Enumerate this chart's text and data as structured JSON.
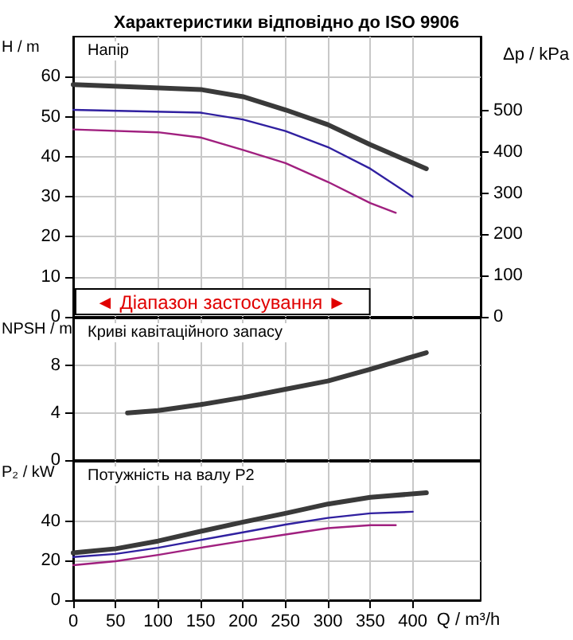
{
  "chart_data": [
    {
      "type": "line",
      "title": "Характеристики відповідно до ISO 9906",
      "subtitle": "Напір",
      "ylabel": "H / m",
      "y2label": "Δp / kPa",
      "xlim": [
        0,
        480
      ],
      "xticks": [
        0,
        50,
        100,
        150,
        200,
        250,
        300,
        350,
        400
      ],
      "ylim": [
        0,
        70
      ],
      "yticks": [
        0,
        10,
        20,
        30,
        40,
        50,
        60
      ],
      "y2lim": [
        0,
        680
      ],
      "y2ticks": [
        0,
        100,
        200,
        300,
        400,
        500
      ],
      "series": [
        {
          "color": "#3a3a3a",
          "x": [
            0,
            150,
            200,
            250,
            300,
            350,
            416
          ],
          "values": [
            58,
            56.8,
            55,
            51.7,
            48,
            43,
            37
          ]
        },
        {
          "color": "#3020a0",
          "x": [
            0,
            150,
            200,
            250,
            300,
            350,
            400
          ],
          "values": [
            51.7,
            51,
            49.3,
            46.4,
            42.4,
            37,
            30
          ]
        },
        {
          "color": "#a0207f",
          "x": [
            0,
            100,
            150,
            200,
            250,
            300,
            350,
            380
          ],
          "values": [
            46.8,
            46.1,
            44.8,
            41.7,
            38.4,
            33.7,
            28.4,
            26
          ]
        }
      ],
      "annotations": [
        "◄ Діапазон застосування ►"
      ],
      "grid": true,
      "tick_labels": "y",
      "line_style": "solid",
      "marker": "none"
    },
    {
      "type": "line",
      "subtitle": "Криві кавітаційного запасу",
      "ylabel": "NPSH / m",
      "xlim": [
        0,
        480
      ],
      "xticks": [
        0,
        50,
        100,
        150,
        200,
        250,
        300,
        350,
        400
      ],
      "ylim": [
        0,
        12
      ],
      "yticks": [
        0,
        4,
        8
      ],
      "series": [
        {
          "color": "#3a3a3a",
          "x": [
            64,
            100,
            150,
            200,
            250,
            300,
            350,
            416
          ],
          "values": [
            4,
            4.2,
            4.7,
            5.3,
            6,
            6.7,
            7.7,
            9.1
          ]
        }
      ],
      "grid": true,
      "tick_labels": "y",
      "line_style": "solid",
      "marker": "none"
    },
    {
      "type": "line",
      "subtitle": "Потужність на валу P2",
      "ylabel": "P₂ / kW",
      "xlabel": "Q / m³/h",
      "xlim": [
        0,
        480
      ],
      "xticks": [
        0,
        50,
        100,
        150,
        200,
        250,
        300,
        350,
        400
      ],
      "ylim": [
        0,
        70
      ],
      "yticks": [
        0,
        20,
        40
      ],
      "series": [
        {
          "color": "#3a3a3a",
          "x": [
            0,
            50,
            100,
            150,
            200,
            250,
            300,
            350,
            416
          ],
          "values": [
            23.9,
            26,
            29.9,
            34.8,
            39.5,
            43.9,
            48.6,
            52,
            54.3
          ]
        },
        {
          "color": "#3020a0",
          "x": [
            0,
            50,
            100,
            150,
            200,
            250,
            300,
            350,
            400
          ],
          "values": [
            21.8,
            23.4,
            26.5,
            30.4,
            34.3,
            38.2,
            41.6,
            43.9,
            44.7
          ]
        },
        {
          "color": "#a0207f",
          "x": [
            0,
            50,
            100,
            150,
            200,
            250,
            300,
            350,
            380
          ],
          "values": [
            17.7,
            19.7,
            22.9,
            26.5,
            29.9,
            33.2,
            36.4,
            37.9,
            37.9
          ]
        }
      ],
      "grid": true,
      "line_style": "solid",
      "marker": "none"
    }
  ]
}
